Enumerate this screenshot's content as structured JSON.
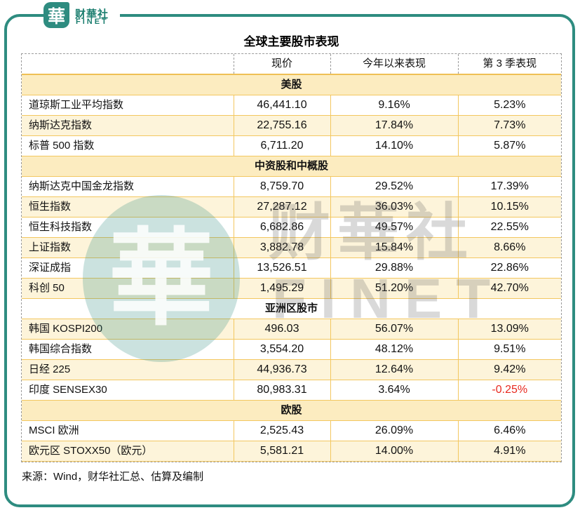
{
  "brand": {
    "logo_char": "華",
    "name_cn": "财華社",
    "name_en": "FINET"
  },
  "watermark": {
    "logo_char": "華",
    "name_cn": "财華社",
    "name_en": "FINET"
  },
  "colors": {
    "brand_teal": "#2e8c80",
    "brand_text_teal": "#1b7e6f",
    "grid_yellow": "#f3c75f",
    "section_cream": "#fcecc0",
    "row_cream": "#fdf4da",
    "negative_red": "#e8291f",
    "outer_border_gray": "#9b9b9b"
  },
  "chart_data": {
    "type": "table",
    "title": "全球主要股市表现",
    "columns": [
      "",
      "现价",
      "今年以来表现",
      "第 3 季表现"
    ],
    "rows": [
      {
        "section": "美股"
      },
      {
        "name": "道琼斯工业平均指数",
        "price": "46,441.10",
        "ytd": "9.16%",
        "q3": "5.23%"
      },
      {
        "name": "纳斯达克指数",
        "price": "22,755.16",
        "ytd": "17.84%",
        "q3": "7.73%"
      },
      {
        "name": "标普 500 指数",
        "price": "6,711.20",
        "ytd": "14.10%",
        "q3": "5.87%"
      },
      {
        "section": "中资股和中概股"
      },
      {
        "name": "纳斯达克中国金龙指数",
        "price": "8,759.70",
        "ytd": "29.52%",
        "q3": "17.39%"
      },
      {
        "name": "恒生指数",
        "price": "27,287.12",
        "ytd": "36.03%",
        "q3": "10.15%"
      },
      {
        "name": "恒生科技指数",
        "price": "6,682.86",
        "ytd": "49.57%",
        "q3": "22.55%"
      },
      {
        "name": "上证指数",
        "price": "3,882.78",
        "ytd": "15.84%",
        "q3": "8.66%"
      },
      {
        "name": "深证成指",
        "price": "13,526.51",
        "ytd": "29.88%",
        "q3": "22.86%"
      },
      {
        "name": "科创 50",
        "price": "1,495.29",
        "ytd": "51.20%",
        "q3": "42.70%"
      },
      {
        "section": "亚洲区股市"
      },
      {
        "name": "韩国 KOSPI200",
        "price": "496.03",
        "ytd": "56.07%",
        "q3": "13.09%"
      },
      {
        "name": "韩国综合指数",
        "price": "3,554.20",
        "ytd": "48.12%",
        "q3": "9.51%"
      },
      {
        "name": "日经 225",
        "price": "44,936.73",
        "ytd": "12.64%",
        "q3": "9.42%"
      },
      {
        "name": "印度 SENSEX30",
        "price": "80,983.31",
        "ytd": "3.64%",
        "q3": "-0.25%",
        "q3_negative": true
      },
      {
        "section": "欧股"
      },
      {
        "name": "MSCI 欧洲",
        "price": "2,525.43",
        "ytd": "26.09%",
        "q3": "6.46%"
      },
      {
        "name": "欧元区 STOXX50（欧元）",
        "price": "5,581.21",
        "ytd": "14.00%",
        "q3": "4.91%"
      }
    ],
    "source": "来源：Wind，财华社汇总、估算及编制"
  }
}
